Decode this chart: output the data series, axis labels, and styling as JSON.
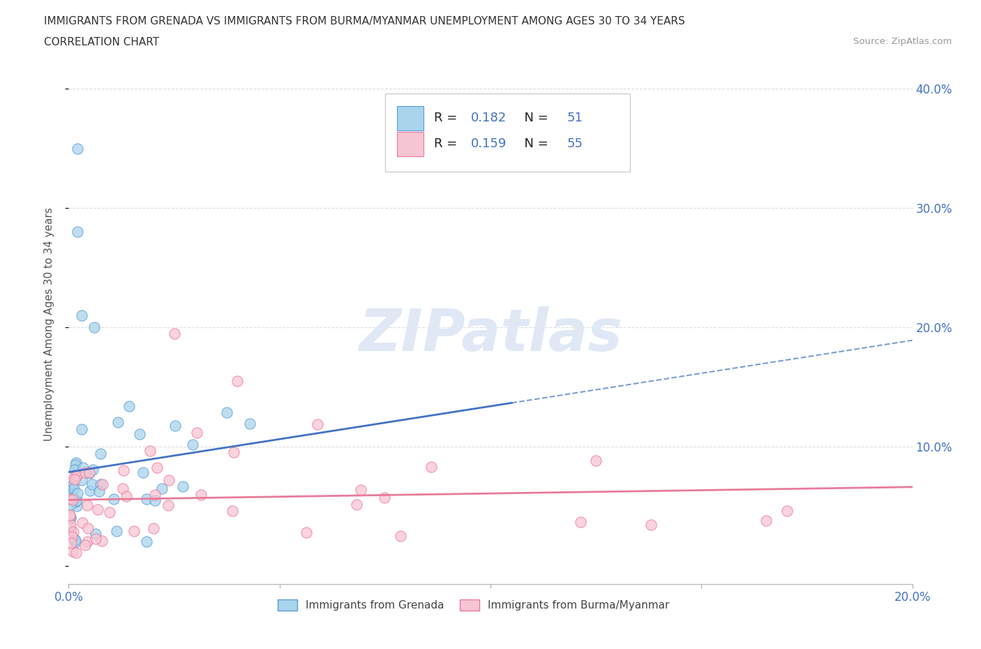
{
  "title_line1": "IMMIGRANTS FROM GRENADA VS IMMIGRANTS FROM BURMA/MYANMAR UNEMPLOYMENT AMONG AGES 30 TO 34 YEARS",
  "title_line2": "CORRELATION CHART",
  "source": "Source: ZipAtlas.com",
  "ylabel": "Unemployment Among Ages 30 to 34 years",
  "xlim": [
    0.0,
    0.2
  ],
  "ylim": [
    -0.015,
    0.42
  ],
  "grenada_R": 0.182,
  "grenada_N": 51,
  "burma_R": 0.159,
  "burma_N": 55,
  "color_grenada_fill": "#A8D4EC",
  "color_grenada_edge": "#5B9BD5",
  "color_burma_fill": "#F7C5D3",
  "color_burma_edge": "#E8789A",
  "color_grenada_line": "#4472C4",
  "color_burma_line": "#E87B9A",
  "color_title": "#333333",
  "color_blue_text": "#4472C4",
  "color_watermark": "#E0E8F5",
  "background_color": "#FFFFFF",
  "legend_box_color": "#CCCCCC",
  "grid_color": "#DDDDDD",
  "tick_label_color": "#4472C4"
}
